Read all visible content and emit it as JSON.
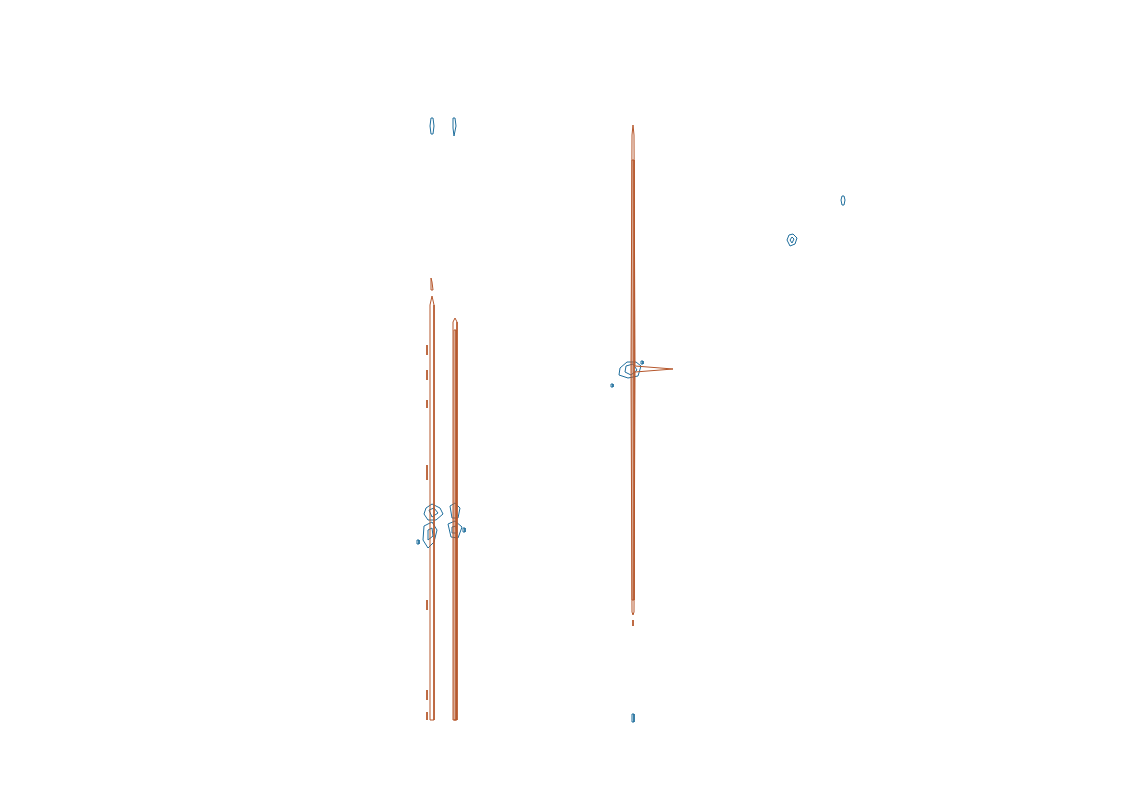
{
  "chart_data": {
    "type": "contour",
    "tick_labels": false,
    "grid": false,
    "xlim": [
      0,
      1133
    ],
    "ylim": [
      791,
      0
    ],
    "xticks": [],
    "yticks": [],
    "series": [
      {
        "color": "#b5562b",
        "points": [
          [
            430,
            305
          ],
          [
            432,
            296
          ],
          [
            434,
            305
          ],
          [
            434,
            720
          ],
          [
            430,
            720
          ],
          [
            430,
            305
          ]
        ]
      },
      {
        "color": "#b5562b",
        "points": [
          [
            431,
            278
          ],
          [
            432,
            282
          ],
          [
            433,
            290
          ],
          [
            431,
            290
          ],
          [
            431,
            278
          ]
        ]
      },
      {
        "color": "#b5562b",
        "points": [
          [
            427,
            345
          ],
          [
            427,
            355
          ]
        ]
      },
      {
        "color": "#b5562b",
        "points": [
          [
            427,
            370
          ],
          [
            427,
            380
          ]
        ]
      },
      {
        "color": "#b5562b",
        "points": [
          [
            427,
            400
          ],
          [
            427,
            408
          ]
        ]
      },
      {
        "color": "#b5562b",
        "points": [
          [
            427,
            465
          ],
          [
            427,
            480
          ]
        ]
      },
      {
        "color": "#b5562b",
        "points": [
          [
            427,
            600
          ],
          [
            427,
            610
          ]
        ]
      },
      {
        "color": "#b5562b",
        "points": [
          [
            427,
            690
          ],
          [
            427,
            700
          ]
        ]
      },
      {
        "color": "#b5562b",
        "points": [
          [
            427,
            712
          ],
          [
            427,
            720
          ]
        ]
      },
      {
        "color": "#b5562b",
        "points": [
          [
            453,
            322
          ],
          [
            455,
            318
          ],
          [
            457,
            322
          ],
          [
            457,
            720
          ],
          [
            453,
            720
          ],
          [
            453,
            322
          ]
        ]
      },
      {
        "color": "#b5562b",
        "points": [
          [
            454,
            330
          ],
          [
            456,
            330
          ],
          [
            456,
            720
          ],
          [
            454,
            720
          ],
          [
            454,
            330
          ]
        ]
      },
      {
        "color": "#b5562b",
        "points": [
          [
            632,
            135
          ],
          [
            633,
            125
          ],
          [
            634,
            135
          ],
          [
            635,
            366
          ],
          [
            673,
            369
          ],
          [
            635,
            372
          ],
          [
            634,
            612
          ],
          [
            633,
            615
          ],
          [
            632,
            612
          ],
          [
            631,
            372
          ],
          [
            631,
            366
          ],
          [
            632,
            135
          ]
        ]
      },
      {
        "color": "#b5562b",
        "points": [
          [
            632,
            160
          ],
          [
            634,
            160
          ],
          [
            634,
            600
          ],
          [
            632,
            600
          ],
          [
            632,
            160
          ]
        ]
      },
      {
        "color": "#b5562b",
        "points": [
          [
            633,
            620
          ],
          [
            633,
            626
          ]
        ]
      },
      {
        "color": "#1f6e9c",
        "points": [
          [
            431,
            118
          ],
          [
            433,
            118
          ],
          [
            434,
            126
          ],
          [
            433,
            134
          ],
          [
            431,
            134
          ],
          [
            430,
            126
          ],
          [
            431,
            118
          ]
        ]
      },
      {
        "color": "#1f6e9c",
        "points": [
          [
            453,
            118
          ],
          [
            455,
            118
          ],
          [
            456,
            126
          ],
          [
            454,
            136
          ],
          [
            453,
            128
          ],
          [
            453,
            118
          ]
        ]
      },
      {
        "color": "#1f6e9c",
        "points": [
          [
            426,
            508
          ],
          [
            432,
            504
          ],
          [
            440,
            508
          ],
          [
            443,
            514
          ],
          [
            436,
            520
          ],
          [
            428,
            520
          ],
          [
            424,
            514
          ],
          [
            426,
            508
          ]
        ]
      },
      {
        "color": "#1f6e9c",
        "points": [
          [
            429,
            510
          ],
          [
            434,
            508
          ],
          [
            438,
            513
          ],
          [
            432,
            517
          ],
          [
            429,
            510
          ]
        ]
      },
      {
        "color": "#1f6e9c",
        "points": [
          [
            424,
            526
          ],
          [
            432,
            522
          ],
          [
            437,
            530
          ],
          [
            434,
            542
          ],
          [
            428,
            548
          ],
          [
            423,
            540
          ],
          [
            424,
            526
          ]
        ]
      },
      {
        "color": "#1f6e9c",
        "points": [
          [
            428,
            530
          ],
          [
            432,
            528
          ],
          [
            433,
            536
          ],
          [
            428,
            540
          ],
          [
            428,
            530
          ]
        ]
      },
      {
        "color": "#1f6e9c",
        "points": [
          [
            417,
            540
          ],
          [
            419,
            540
          ],
          [
            419,
            544
          ],
          [
            417,
            544
          ],
          [
            417,
            540
          ]
        ]
      },
      {
        "color": "#1f6e9c",
        "points": [
          [
            450,
            506
          ],
          [
            455,
            503
          ],
          [
            460,
            508
          ],
          [
            458,
            518
          ],
          [
            452,
            518
          ],
          [
            450,
            506
          ]
        ]
      },
      {
        "color": "#1f6e9c",
        "points": [
          [
            448,
            524
          ],
          [
            455,
            521
          ],
          [
            462,
            527
          ],
          [
            458,
            538
          ],
          [
            451,
            537
          ],
          [
            448,
            524
          ]
        ]
      },
      {
        "color": "#1f6e9c",
        "points": [
          [
            452,
            527
          ],
          [
            456,
            526
          ],
          [
            457,
            533
          ],
          [
            452,
            533
          ],
          [
            452,
            527
          ]
        ]
      },
      {
        "color": "#1f6e9c",
        "points": [
          [
            463,
            528
          ],
          [
            465,
            528
          ],
          [
            465,
            532
          ],
          [
            463,
            532
          ],
          [
            463,
            528
          ]
        ]
      },
      {
        "color": "#1f6e9c",
        "points": [
          [
            620,
            368
          ],
          [
            627,
            362
          ],
          [
            636,
            362
          ],
          [
            641,
            366
          ],
          [
            638,
            376
          ],
          [
            628,
            378
          ],
          [
            619,
            375
          ],
          [
            620,
            368
          ]
        ]
      },
      {
        "color": "#1f6e9c",
        "points": [
          [
            626,
            366
          ],
          [
            633,
            364
          ],
          [
            637,
            370
          ],
          [
            631,
            375
          ],
          [
            625,
            372
          ],
          [
            626,
            366
          ]
        ]
      },
      {
        "color": "#1f6e9c",
        "points": [
          [
            641,
            361
          ],
          [
            643,
            361
          ],
          [
            643,
            364
          ],
          [
            641,
            364
          ],
          [
            641,
            361
          ]
        ]
      },
      {
        "color": "#1f6e9c",
        "points": [
          [
            611,
            384
          ],
          [
            613,
            384
          ],
          [
            613,
            387
          ],
          [
            611,
            387
          ],
          [
            611,
            384
          ]
        ]
      },
      {
        "color": "#1f6e9c",
        "points": [
          [
            842,
            196
          ],
          [
            844,
            196
          ],
          [
            845,
            200
          ],
          [
            844,
            205
          ],
          [
            842,
            205
          ],
          [
            841,
            200
          ],
          [
            842,
            196
          ]
        ]
      },
      {
        "color": "#1f6e9c",
        "points": [
          [
            787,
            240
          ],
          [
            789,
            235
          ],
          [
            793,
            234
          ],
          [
            797,
            238
          ],
          [
            795,
            244
          ],
          [
            790,
            246
          ],
          [
            787,
            240
          ]
        ]
      },
      {
        "color": "#1f6e9c",
        "points": [
          [
            790,
            240
          ],
          [
            792,
            237
          ],
          [
            794,
            239
          ],
          [
            792,
            243
          ],
          [
            790,
            240
          ]
        ]
      },
      {
        "color": "#1f6e9c",
        "points": [
          [
            632,
            714
          ],
          [
            634,
            714
          ],
          [
            634,
            722
          ],
          [
            632,
            722
          ],
          [
            632,
            714
          ]
        ]
      }
    ]
  }
}
